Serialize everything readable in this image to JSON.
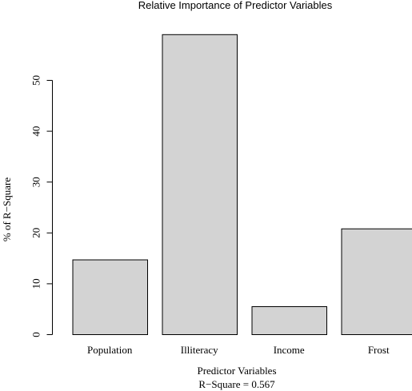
{
  "chart_data": {
    "type": "bar",
    "title": "Relative Importance of Predictor Variables",
    "xlabel": "Predictor Variables",
    "ylabel": "% of R−Square",
    "subtitle": "R−Square =  0.567",
    "categories": [
      "Population",
      "Illiteracy",
      "Income",
      "Frost"
    ],
    "values": [
      14.7,
      59.0,
      5.5,
      20.8
    ],
    "ylim": [
      0,
      60
    ],
    "yticks": [
      0,
      10,
      20,
      30,
      40,
      50
    ],
    "grid": false,
    "bar_color": "#d3d3d3"
  }
}
